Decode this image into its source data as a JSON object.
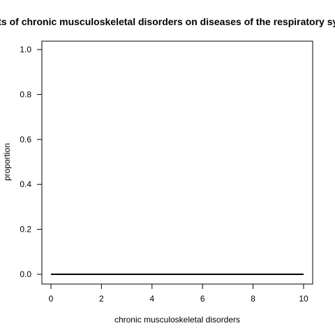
{
  "chart_data": {
    "type": "line",
    "title": "Effects of chronic musculoskeletal disorders on diseases of the respiratory system",
    "xlabel": "chronic musculoskeletal disorders",
    "ylabel": "proportion",
    "xlim": [
      0,
      10
    ],
    "ylim": [
      0,
      1
    ],
    "xticks": [
      0,
      2,
      4,
      6,
      8,
      10
    ],
    "yticks": [
      0.0,
      0.2,
      0.4,
      0.6,
      0.8,
      1.0
    ],
    "xtick_labels": [
      "0",
      "2",
      "4",
      "6",
      "8",
      "10"
    ],
    "ytick_labels": [
      "0.0",
      "0.2",
      "0.4",
      "0.6",
      "0.8",
      "1.0"
    ],
    "grid": false,
    "series": [
      {
        "x": [
          0,
          1,
          2,
          3,
          4,
          5,
          6,
          7,
          8,
          9,
          10
        ],
        "values": [
          0,
          0,
          0,
          0,
          0,
          0,
          0,
          0,
          0,
          0,
          0
        ],
        "color": "#000000"
      }
    ]
  }
}
